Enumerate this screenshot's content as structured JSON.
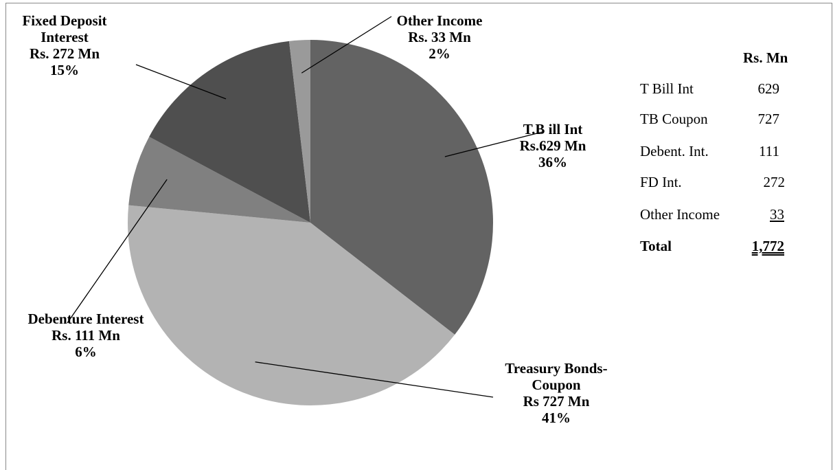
{
  "chart_data": {
    "type": "pie",
    "unit": "Rs. Mn",
    "slices": [
      {
        "key": "tbill",
        "value": 629,
        "percent": 36,
        "color": "#636363",
        "label_lines": [
          "T.B ill Int",
          "Rs.629 Mn",
          "36%"
        ]
      },
      {
        "key": "tbond",
        "value": 727,
        "percent": 41,
        "color": "#b3b3b3",
        "label_lines": [
          "Treasury Bonds-",
          "Coupon",
          "Rs 727 Mn",
          "41%"
        ]
      },
      {
        "key": "debent",
        "value": 111,
        "percent": 6,
        "color": "#808080",
        "label_lines": [
          "Debenture Interest",
          "Rs. 111 Mn",
          "6%"
        ]
      },
      {
        "key": "fd",
        "value": 272,
        "percent": 15,
        "color": "#4f4f4f",
        "label_lines": [
          "Fixed Deposit",
          "Interest",
          "Rs. 272 Mn",
          "15%"
        ]
      },
      {
        "key": "other",
        "value": 33,
        "percent": 2,
        "color": "#9a9a9a",
        "label_lines": [
          "Other Income",
          "Rs. 33 Mn",
          "2%"
        ]
      }
    ]
  },
  "summary_table": {
    "header": "Rs. Mn",
    "rows": [
      {
        "label": "T Bill Int",
        "value": "629"
      },
      {
        "label": "TB Coupon",
        "value": "727"
      },
      {
        "label": "Debent. Int.",
        "value": "111"
      },
      {
        "label": "FD Int.",
        "value": "272"
      },
      {
        "label": "Other Income",
        "value": "33"
      }
    ],
    "total_label": "Total",
    "total_value": "1,772"
  }
}
